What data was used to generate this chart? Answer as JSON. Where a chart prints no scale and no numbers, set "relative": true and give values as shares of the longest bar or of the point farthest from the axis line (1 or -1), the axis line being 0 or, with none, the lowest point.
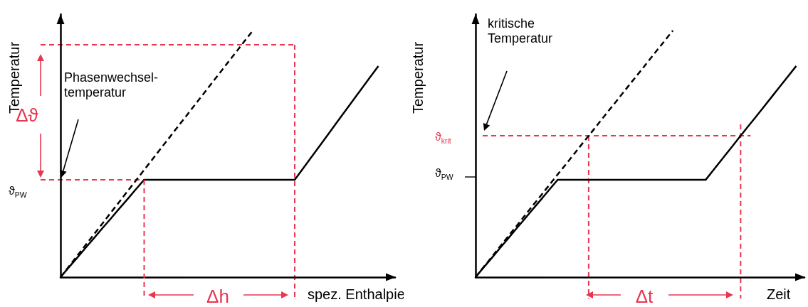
{
  "chart_data": [
    {
      "type": "line",
      "relative": true,
      "xlabel": "spez. Enthalpie",
      "ylabel": "Temperatur",
      "grid": false,
      "marker": "none",
      "categories": [
        null,
        null,
        null,
        null,
        null,
        null,
        null,
        null,
        null,
        null,
        null,
        null,
        null,
        null,
        null,
        null,
        null,
        null,
        null,
        null,
        null,
        null,
        null,
        null,
        null,
        null,
        null,
        null,
        null,
        null,
        null,
        null,
        null,
        null,
        null,
        null,
        null,
        null,
        null,
        null,
        null
      ],
      "annotations": [
        "Phasenwechsel-temperatur",
        "Δϑ",
        "Δh"
      ],
      "ref_lines": [
        {
          "axis": "y",
          "value": 0.395,
          "label": "ϑ$_{PW}$",
          "color": "#e8364f",
          "line_style": "dashed"
        },
        {
          "axis": "y",
          "value": 0.942,
          "color": "#e8364f",
          "line_style": "dashed"
        }
      ],
      "series": [
        {
          "color": "#000000",
          "line_style": "solid",
          "values": [
            0,
            0.04,
            0.079,
            0.119,
            0.158,
            0.198,
            0.237,
            0.277,
            0.316,
            0.356,
            0.395,
            0.395,
            0.395,
            0.395,
            0.395,
            0.395,
            0.395,
            0.395,
            0.395,
            0.395,
            0.395,
            0.395,
            0.395,
            0.395,
            0.395,
            0.395,
            0.395,
            0.395,
            0.395,
            0.441,
            0.487,
            0.533,
            0.579,
            0.626,
            0.672,
            0.718,
            0.764,
            0.81,
            0.856,
            null,
            null
          ]
        },
        {
          "color": "#000000",
          "line_style": "dashed",
          "values": [
            0,
            0.043,
            0.087,
            0.13,
            0.174,
            0.217,
            0.261,
            0.304,
            0.348,
            0.391,
            0.435,
            0.478,
            0.522,
            0.565,
            0.609,
            0.652,
            0.696,
            0.739,
            0.783,
            0.826,
            0.87,
            0.913,
            0.957,
            1,
            null,
            null,
            null,
            null,
            null,
            null,
            null,
            null,
            null,
            null,
            null,
            null,
            null,
            null,
            null,
            null,
            null
          ]
        }
      ]
    },
    {
      "type": "line",
      "relative": true,
      "xlabel": "Zeit",
      "ylabel": "Temperatur",
      "grid": false,
      "marker": "none",
      "categories": [
        null,
        null,
        null,
        null,
        null,
        null,
        null,
        null,
        null,
        null,
        null,
        null,
        null,
        null,
        null,
        null,
        null,
        null,
        null,
        null,
        null,
        null,
        null,
        null,
        null,
        null,
        null,
        null,
        null,
        null,
        null,
        null,
        null,
        null,
        null,
        null,
        null,
        null,
        null,
        null,
        null
      ],
      "annotations": [
        "kritische Temperatur",
        "Δt",
        "ϑ$_{PW}$"
      ],
      "ref_lines": [
        {
          "axis": "y",
          "value": 0.573,
          "label": "ϑ$_{krit}$",
          "color": "#e8364f",
          "line_style": "dashed"
        }
      ],
      "series": [
        {
          "color": "#000000",
          "line_style": "solid",
          "values": [
            0,
            0.04,
            0.079,
            0.119,
            0.158,
            0.198,
            0.237,
            0.277,
            0.316,
            0.356,
            0.395,
            0.395,
            0.395,
            0.395,
            0.395,
            0.395,
            0.395,
            0.395,
            0.395,
            0.395,
            0.395,
            0.395,
            0.395,
            0.395,
            0.395,
            0.395,
            0.395,
            0.395,
            0.395,
            0.437,
            0.479,
            0.521,
            0.563,
            0.605,
            0.646,
            0.688,
            0.73,
            0.772,
            0.814,
            0.856,
            null
          ]
        },
        {
          "color": "#000000",
          "line_style": "dashed",
          "values": [
            0,
            0.042,
            0.083,
            0.125,
            0.167,
            0.208,
            0.25,
            0.292,
            0.333,
            0.375,
            0.417,
            0.458,
            0.5,
            0.542,
            0.583,
            0.625,
            0.667,
            0.708,
            0.75,
            0.792,
            0.833,
            0.875,
            0.917,
            0.958,
            1,
            null,
            null,
            null,
            null,
            null,
            null,
            null,
            null,
            null,
            null,
            null,
            null,
            null,
            null,
            null,
            null
          ]
        }
      ]
    }
  ]
}
